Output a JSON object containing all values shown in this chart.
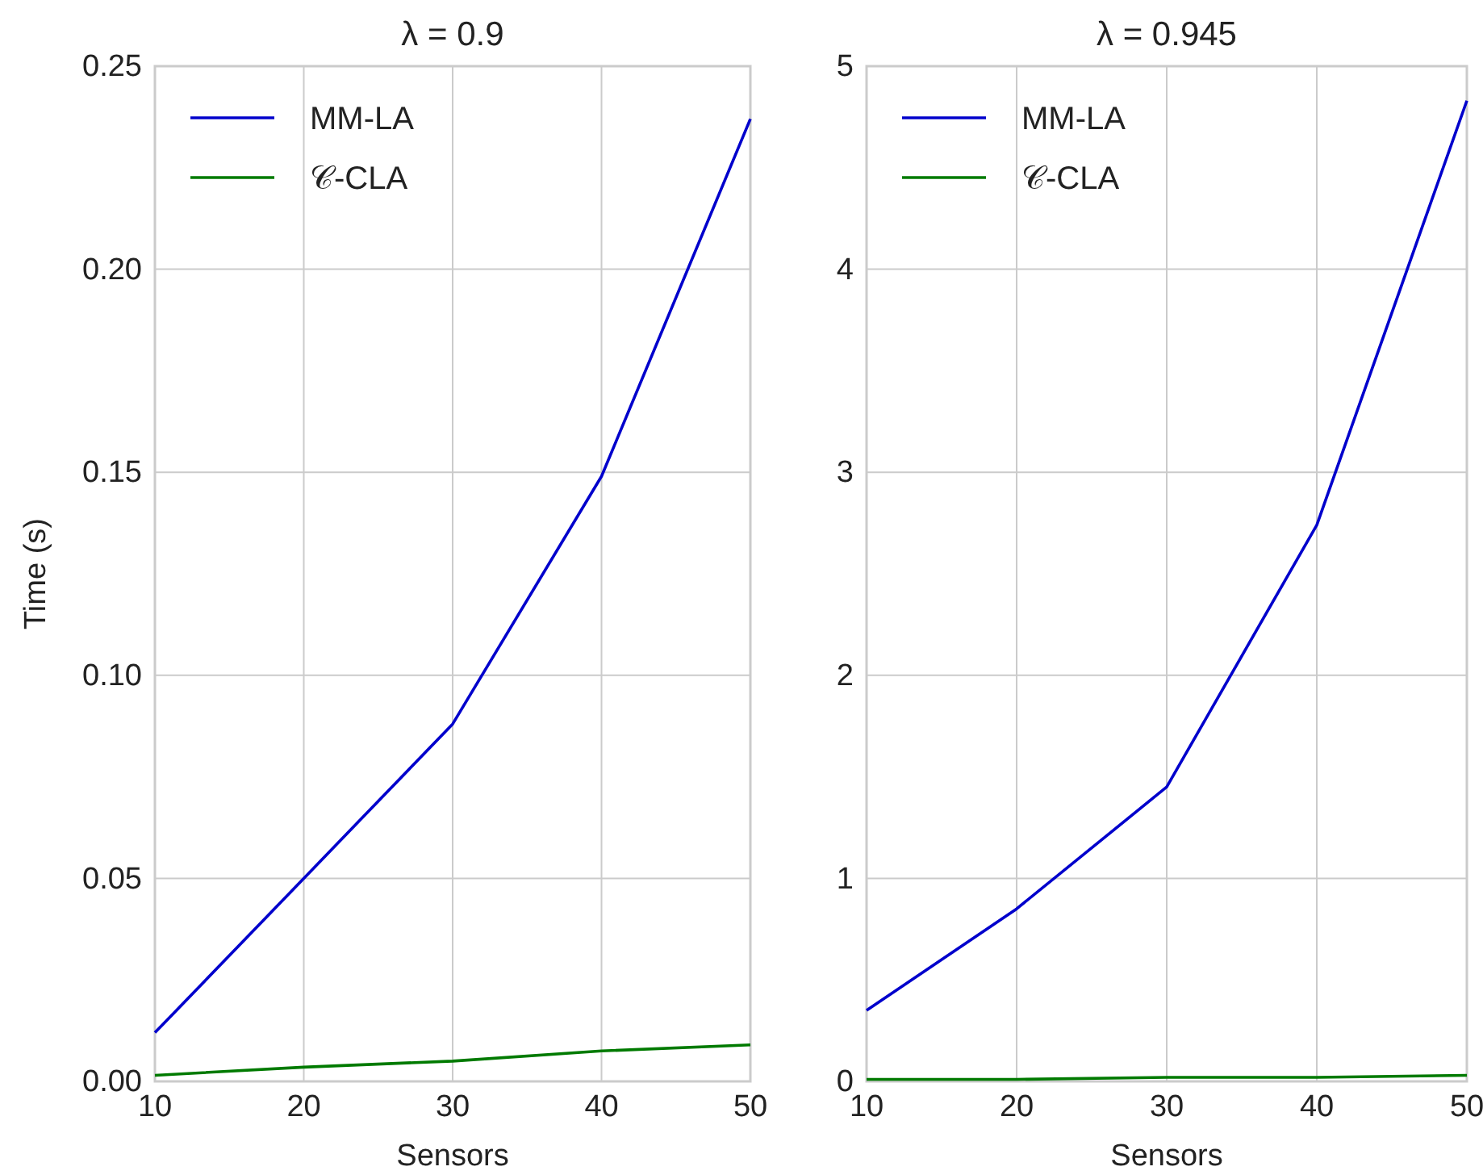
{
  "chart_data": [
    {
      "type": "line",
      "title": "λ = 0.9",
      "xlabel": "Sensors",
      "ylabel": "Time (s)",
      "x": [
        10,
        20,
        30,
        40,
        50
      ],
      "series": [
        {
          "name": "MM-LA",
          "color": "#0000cc",
          "values": [
            0.012,
            0.05,
            0.088,
            0.149,
            0.237
          ]
        },
        {
          "name": "𝒞-CLA",
          "color": "#007a00",
          "values": [
            0.0015,
            0.0035,
            0.005,
            0.0075,
            0.009
          ]
        }
      ],
      "xlim": [
        10,
        50
      ],
      "xticks": [
        10,
        20,
        30,
        40,
        50
      ],
      "ylim": [
        0,
        0.25
      ],
      "yticks": [
        {
          "value": 0,
          "label": "0.00"
        },
        {
          "value": 0.05,
          "label": "0.05"
        },
        {
          "value": 0.1,
          "label": "0.10"
        },
        {
          "value": 0.15,
          "label": "0.15"
        },
        {
          "value": 0.2,
          "label": "0.20"
        },
        {
          "value": 0.25,
          "label": "0.25"
        }
      ],
      "grid": true,
      "legend": "top left"
    },
    {
      "type": "line",
      "title": "λ = 0.945",
      "xlabel": "Sensors",
      "x": [
        10,
        20,
        30,
        40,
        50
      ],
      "series": [
        {
          "name": "MM-LA",
          "color": "#0000cc",
          "values": [
            0.35,
            0.85,
            1.45,
            2.74,
            4.83
          ]
        },
        {
          "name": "𝒞-CLA",
          "color": "#007a00",
          "values": [
            0.01,
            0.01,
            0.02,
            0.02,
            0.03
          ]
        }
      ],
      "xlim": [
        10,
        50
      ],
      "xticks": [
        10,
        20,
        30,
        40,
        50
      ],
      "ylim": [
        0,
        5
      ],
      "yticks": [
        0,
        1,
        2,
        3,
        4,
        5
      ],
      "grid": true,
      "legend": "top left"
    }
  ]
}
